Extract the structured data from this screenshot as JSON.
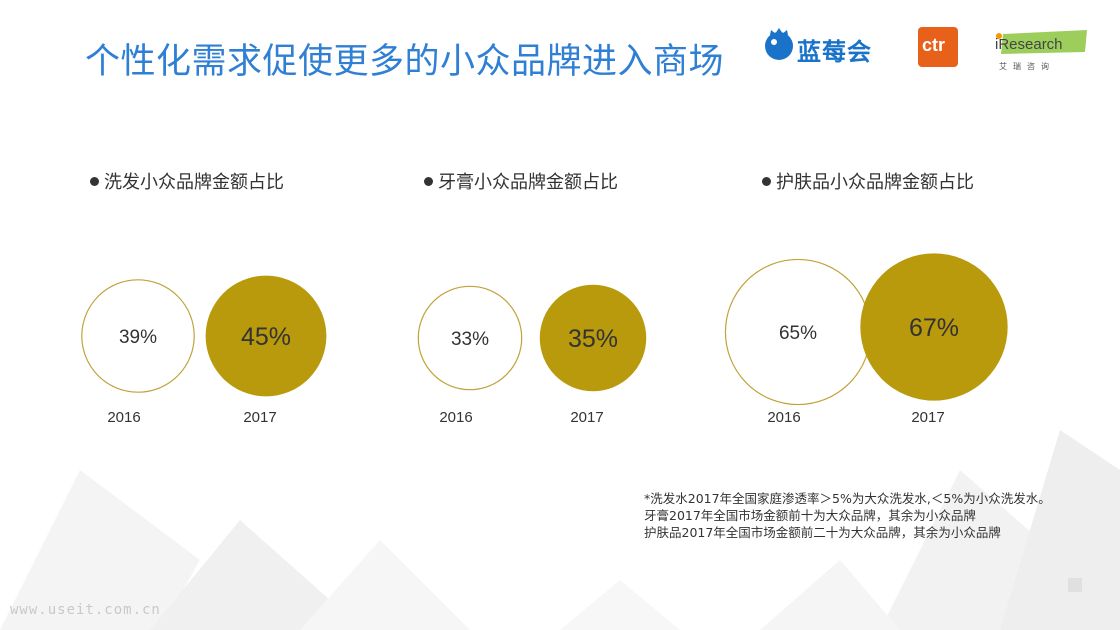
{
  "title": "个性化需求促使更多的小众品牌进入商场",
  "logos": {
    "lanmeihui": "蓝莓会",
    "ctr": "ctr",
    "iresearch": "iResearch",
    "iresearch_sub": "艾瑞咨询"
  },
  "colors": {
    "title": "#2f7fd4",
    "accent": "#b89a0c",
    "outline": "#c0a33a"
  },
  "chart_data": [
    {
      "type": "bubble",
      "title": "洗发小众品牌金额占比",
      "categories": [
        "2016",
        "2017"
      ],
      "values": [
        39,
        45
      ],
      "labels": [
        "39%",
        "45%"
      ]
    },
    {
      "type": "bubble",
      "title": "牙膏小众品牌金额占比",
      "categories": [
        "2016",
        "2017"
      ],
      "values": [
        33,
        35
      ],
      "labels": [
        "33%",
        "35%"
      ]
    },
    {
      "type": "bubble",
      "title": "护肤品小众品牌金额占比",
      "categories": [
        "2016",
        "2017"
      ],
      "values": [
        65,
        67
      ],
      "labels": [
        "65%",
        "67%"
      ]
    }
  ],
  "footnote": {
    "line1": "*洗发水2017年全国家庭渗透率＞5%为大众洗发水,＜5%为小众洗发水。",
    "line2": " 牙膏2017年全国市场金额前十为大众品牌，其余为小众品牌",
    "line3": " 护肤品2017年全国市场金额前二十为大众品牌，其余为小众品牌"
  },
  "watermark": "www.useit.com.cn"
}
